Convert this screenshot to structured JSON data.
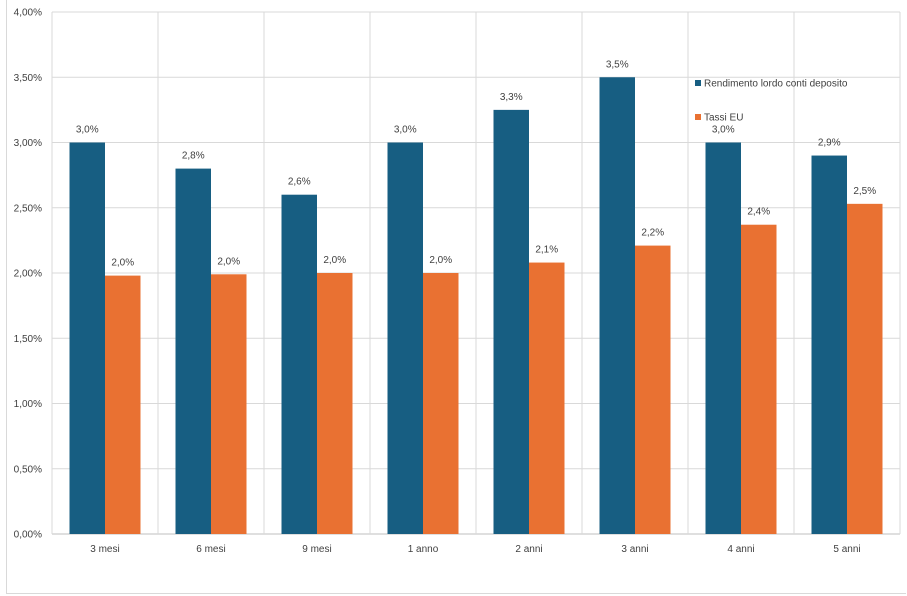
{
  "chart_data": {
    "type": "bar",
    "title": "",
    "xlabel": "",
    "ylabel": "",
    "ylim": [
      0,
      4
    ],
    "grid": true,
    "legend_position": "right-inside",
    "y_ticks": [
      "0,00%",
      "0,50%",
      "1,00%",
      "1,50%",
      "2,00%",
      "2,50%",
      "3,00%",
      "3,50%",
      "4,00%"
    ],
    "categories": [
      "3 mesi",
      "6 mesi",
      "9 mesi",
      "1 anno",
      "2 anni",
      "3 anni",
      "4 anni",
      "5 anni"
    ],
    "series": [
      {
        "name": "Rendimento lordo conti deposito",
        "color": "#175e82",
        "values": [
          3.0,
          2.8,
          2.6,
          3.0,
          3.25,
          3.5,
          3.0,
          2.9
        ],
        "labels": [
          "3,0%",
          "2,8%",
          "2,6%",
          "3,0%",
          "3,3%",
          "3,5%",
          "3,0%",
          "2,9%"
        ]
      },
      {
        "name": "Tassi EU",
        "color": "#e97132",
        "values": [
          1.98,
          1.99,
          2.0,
          2.0,
          2.08,
          2.21,
          2.37,
          2.53
        ],
        "labels": [
          "2,0%",
          "2,0%",
          "2,0%",
          "2,0%",
          "2,1%",
          "2,2%",
          "2,4%",
          "2,5%"
        ]
      }
    ]
  }
}
